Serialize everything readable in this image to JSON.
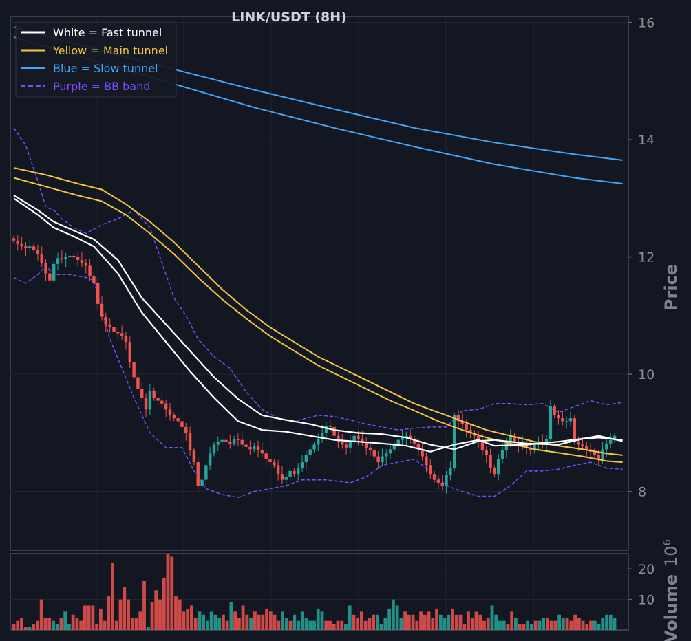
{
  "chart_data": {
    "type": "line",
    "title": "LINK/USDT (8H)",
    "price_axis": {
      "label": "Price",
      "range": [
        7.0,
        16.1
      ],
      "ticks": [
        8,
        10,
        12,
        14,
        16
      ]
    },
    "volume_axis": {
      "label": "Volume",
      "multiplier": "10",
      "exponent": "6",
      "range": [
        0,
        25
      ],
      "ticks": [
        10,
        20
      ]
    },
    "grid": true,
    "legend": {
      "placement": "top-left",
      "entries": [
        {
          "label": "White = Fast tunnel",
          "color": "#ffffff",
          "style": "solid"
        },
        {
          "label": "Yellow = Main tunnel",
          "color": "#f5c542",
          "style": "solid"
        },
        {
          "label": "Blue = Slow tunnel",
          "color": "#42a5f5",
          "style": "solid"
        },
        {
          "label": "Purple = BB band",
          "color": "#7c4dff",
          "style": "dashed"
        }
      ]
    },
    "candles_close": [
      12.28,
      12.22,
      12.18,
      12.15,
      12.18,
      12.12,
      12.05,
      11.9,
      11.72,
      11.6,
      11.88,
      11.98,
      11.96,
      12.0,
      12.02,
      12.0,
      11.95,
      11.9,
      11.85,
      11.68,
      11.55,
      11.2,
      10.98,
      10.85,
      10.8,
      10.72,
      10.7,
      10.65,
      10.55,
      10.2,
      9.95,
      9.75,
      9.6,
      9.4,
      9.72,
      9.6,
      9.55,
      9.5,
      9.4,
      9.3,
      9.25,
      9.2,
      9.1,
      9.0,
      8.7,
      8.5,
      8.1,
      8.2,
      8.45,
      8.65,
      8.8,
      8.85,
      8.88,
      8.85,
      8.82,
      8.9,
      8.88,
      8.8,
      8.76,
      8.72,
      8.78,
      8.7,
      8.65,
      8.55,
      8.5,
      8.45,
      8.3,
      8.2,
      8.25,
      8.35,
      8.3,
      8.4,
      8.5,
      8.62,
      8.72,
      8.8,
      8.9,
      9.0,
      9.12,
      9.1,
      8.95,
      8.85,
      8.8,
      8.75,
      8.85,
      8.95,
      8.9,
      8.85,
      8.75,
      8.7,
      8.6,
      8.5,
      8.6,
      8.65,
      8.72,
      8.8,
      8.88,
      8.92,
      8.95,
      8.9,
      8.82,
      8.72,
      8.6,
      8.45,
      8.3,
      8.2,
      8.15,
      8.1,
      8.28,
      8.4,
      9.3,
      9.2,
      9.15,
      9.05,
      9.0,
      8.95,
      8.85,
      8.7,
      8.62,
      8.4,
      8.3,
      8.55,
      8.7,
      8.85,
      8.95,
      8.85,
      8.78,
      8.82,
      8.75,
      8.7,
      8.8,
      8.85,
      8.8,
      8.9,
      9.45,
      9.3,
      9.25,
      9.2,
      9.2,
      9.25,
      8.85,
      8.8,
      8.78,
      8.72,
      8.68,
      8.62,
      8.55,
      8.72,
      8.82,
      8.88,
      8.95
    ],
    "fast_tunnel_upper": [
      [
        0,
        13.05
      ],
      [
        6,
        12.8
      ],
      [
        10,
        12.6
      ],
      [
        15,
        12.45
      ],
      [
        20,
        12.3
      ],
      [
        26,
        11.95
      ],
      [
        32,
        11.3
      ],
      [
        38,
        10.85
      ],
      [
        44,
        10.4
      ],
      [
        50,
        9.95
      ],
      [
        56,
        9.58
      ],
      [
        62,
        9.3
      ],
      [
        68,
        9.22
      ],
      [
        74,
        9.15
      ],
      [
        80,
        9.05
      ],
      [
        86,
        9.0
      ],
      [
        92,
        8.98
      ],
      [
        98,
        8.92
      ],
      [
        104,
        8.8
      ],
      [
        110,
        8.72
      ],
      [
        116,
        8.86
      ],
      [
        120,
        8.88
      ],
      [
        128,
        8.82
      ],
      [
        136,
        8.8
      ],
      [
        142,
        8.9
      ],
      [
        146,
        8.95
      ],
      [
        152,
        8.86
      ]
    ],
    "fast_tunnel_lower": [
      [
        0,
        13.0
      ],
      [
        6,
        12.72
      ],
      [
        10,
        12.5
      ],
      [
        15,
        12.35
      ],
      [
        20,
        12.18
      ],
      [
        26,
        11.72
      ],
      [
        32,
        11.05
      ],
      [
        38,
        10.55
      ],
      [
        44,
        10.05
      ],
      [
        50,
        9.6
      ],
      [
        56,
        9.2
      ],
      [
        62,
        9.05
      ],
      [
        68,
        9.02
      ],
      [
        74,
        8.95
      ],
      [
        80,
        8.88
      ],
      [
        86,
        8.85
      ],
      [
        92,
        8.82
      ],
      [
        98,
        8.78
      ],
      [
        104,
        8.68
      ],
      [
        110,
        8.8
      ],
      [
        116,
        8.88
      ],
      [
        120,
        8.78
      ],
      [
        128,
        8.8
      ],
      [
        136,
        8.85
      ],
      [
        142,
        8.9
      ],
      [
        146,
        8.92
      ],
      [
        152,
        8.88
      ]
    ],
    "main_tunnel_upper": [
      [
        0,
        13.52
      ],
      [
        8,
        13.4
      ],
      [
        16,
        13.25
      ],
      [
        22,
        13.15
      ],
      [
        28,
        12.9
      ],
      [
        34,
        12.6
      ],
      [
        40,
        12.25
      ],
      [
        46,
        11.85
      ],
      [
        52,
        11.45
      ],
      [
        58,
        11.1
      ],
      [
        64,
        10.8
      ],
      [
        70,
        10.55
      ],
      [
        76,
        10.3
      ],
      [
        82,
        10.1
      ],
      [
        88,
        9.9
      ],
      [
        94,
        9.7
      ],
      [
        100,
        9.5
      ],
      [
        106,
        9.35
      ],
      [
        112,
        9.2
      ],
      [
        118,
        9.05
      ],
      [
        124,
        8.95
      ],
      [
        130,
        8.85
      ],
      [
        136,
        8.78
      ],
      [
        142,
        8.72
      ],
      [
        148,
        8.65
      ],
      [
        152,
        8.62
      ]
    ],
    "main_tunnel_lower": [
      [
        0,
        13.35
      ],
      [
        8,
        13.2
      ],
      [
        16,
        13.05
      ],
      [
        22,
        12.95
      ],
      [
        28,
        12.72
      ],
      [
        34,
        12.4
      ],
      [
        40,
        12.05
      ],
      [
        46,
        11.65
      ],
      [
        52,
        11.28
      ],
      [
        58,
        10.95
      ],
      [
        64,
        10.65
      ],
      [
        70,
        10.4
      ],
      [
        76,
        10.15
      ],
      [
        82,
        9.95
      ],
      [
        88,
        9.75
      ],
      [
        94,
        9.55
      ],
      [
        100,
        9.38
      ],
      [
        106,
        9.2
      ],
      [
        112,
        9.05
      ],
      [
        118,
        8.92
      ],
      [
        124,
        8.82
      ],
      [
        130,
        8.72
      ],
      [
        136,
        8.66
      ],
      [
        142,
        8.6
      ],
      [
        148,
        8.52
      ],
      [
        152,
        8.5
      ]
    ],
    "slow_tunnel_upper": [
      [
        0,
        15.92
      ],
      [
        20,
        15.55
      ],
      [
        40,
        15.2
      ],
      [
        60,
        14.85
      ],
      [
        80,
        14.52
      ],
      [
        100,
        14.2
      ],
      [
        120,
        13.95
      ],
      [
        140,
        13.75
      ],
      [
        152,
        13.65
      ]
    ],
    "slow_tunnel_lower": [
      [
        0,
        15.75
      ],
      [
        20,
        15.35
      ],
      [
        40,
        14.95
      ],
      [
        60,
        14.55
      ],
      [
        80,
        14.2
      ],
      [
        100,
        13.88
      ],
      [
        120,
        13.58
      ],
      [
        140,
        13.35
      ],
      [
        152,
        13.25
      ]
    ],
    "bb_upper": [
      [
        0,
        14.2
      ],
      [
        3,
        13.9
      ],
      [
        6,
        13.3
      ],
      [
        8,
        12.85
      ],
      [
        10,
        12.8
      ],
      [
        12,
        12.65
      ],
      [
        15,
        12.5
      ],
      [
        18,
        12.4
      ],
      [
        22,
        12.55
      ],
      [
        26,
        12.65
      ],
      [
        30,
        12.8
      ],
      [
        34,
        12.5
      ],
      [
        37,
        11.9
      ],
      [
        40,
        11.3
      ],
      [
        43,
        11.0
      ],
      [
        46,
        10.6
      ],
      [
        50,
        10.3
      ],
      [
        54,
        10.1
      ],
      [
        58,
        9.7
      ],
      [
        62,
        9.4
      ],
      [
        66,
        9.25
      ],
      [
        70,
        9.2
      ],
      [
        76,
        9.3
      ],
      [
        80,
        9.28
      ],
      [
        84,
        9.22
      ],
      [
        88,
        9.15
      ],
      [
        92,
        9.1
      ],
      [
        96,
        9.05
      ],
      [
        100,
        9.08
      ],
      [
        104,
        9.1
      ],
      [
        108,
        9.1
      ],
      [
        112,
        9.38
      ],
      [
        116,
        9.4
      ],
      [
        120,
        9.5
      ],
      [
        124,
        9.5
      ],
      [
        128,
        9.48
      ],
      [
        132,
        9.5
      ],
      [
        136,
        9.35
      ],
      [
        140,
        9.45
      ],
      [
        144,
        9.55
      ],
      [
        148,
        9.48
      ],
      [
        152,
        9.52
      ]
    ],
    "bb_lower": [
      [
        0,
        11.65
      ],
      [
        3,
        11.55
      ],
      [
        6,
        11.7
      ],
      [
        8,
        11.85
      ],
      [
        10,
        11.7
      ],
      [
        14,
        11.7
      ],
      [
        18,
        11.65
      ],
      [
        20,
        11.6
      ],
      [
        24,
        10.6
      ],
      [
        30,
        9.6
      ],
      [
        34,
        9.0
      ],
      [
        38,
        8.75
      ],
      [
        42,
        8.75
      ],
      [
        45,
        8.35
      ],
      [
        48,
        8.05
      ],
      [
        52,
        7.95
      ],
      [
        56,
        7.9
      ],
      [
        60,
        8.0
      ],
      [
        64,
        8.05
      ],
      [
        68,
        8.1
      ],
      [
        72,
        8.2
      ],
      [
        78,
        8.2
      ],
      [
        84,
        8.15
      ],
      [
        88,
        8.25
      ],
      [
        92,
        8.45
      ],
      [
        96,
        8.5
      ],
      [
        100,
        8.55
      ],
      [
        104,
        8.35
      ],
      [
        108,
        8.1
      ],
      [
        112,
        8.0
      ],
      [
        116,
        7.92
      ],
      [
        120,
        7.92
      ],
      [
        124,
        8.1
      ],
      [
        128,
        8.35
      ],
      [
        132,
        8.35
      ],
      [
        136,
        8.38
      ],
      [
        140,
        8.45
      ],
      [
        144,
        8.5
      ],
      [
        148,
        8.4
      ],
      [
        152,
        8.38
      ]
    ],
    "volume_values": [
      2,
      3,
      4,
      1,
      1,
      2,
      3,
      10,
      4,
      4,
      3,
      2,
      4,
      6,
      2,
      5,
      4,
      3,
      8,
      8,
      8,
      2,
      7,
      3,
      11,
      22,
      3,
      10,
      14,
      10,
      4,
      4,
      6,
      16,
      1,
      9,
      13,
      10,
      17,
      25,
      24,
      11,
      10,
      6,
      7,
      8,
      4,
      6,
      5,
      3,
      6,
      5,
      4,
      5,
      3,
      9,
      6,
      4,
      8,
      5,
      4,
      6,
      5,
      5,
      7,
      6,
      5,
      3,
      6,
      4,
      3,
      5,
      3,
      6,
      4,
      3,
      3,
      7,
      6,
      3,
      3,
      2,
      3,
      3,
      2,
      8,
      5,
      4,
      6,
      3,
      4,
      5,
      5,
      2,
      4,
      7,
      10,
      8,
      4,
      6,
      5,
      5,
      3,
      6,
      5,
      6,
      4,
      7,
      5,
      4,
      5,
      7,
      5,
      5,
      2,
      6,
      4,
      6,
      5,
      3,
      4,
      8,
      5,
      3,
      3,
      2,
      6,
      4,
      2,
      2,
      3,
      2,
      3,
      3,
      4,
      4,
      3,
      3,
      5,
      4,
      4,
      3,
      5,
      4,
      3,
      2,
      3,
      3,
      2,
      4,
      5,
      5,
      4
    ],
    "colors": {
      "up": "#26a69a",
      "down": "#ef5350",
      "background": "#131722",
      "grid": "#22262f",
      "axis": "#3a3e48"
    }
  }
}
